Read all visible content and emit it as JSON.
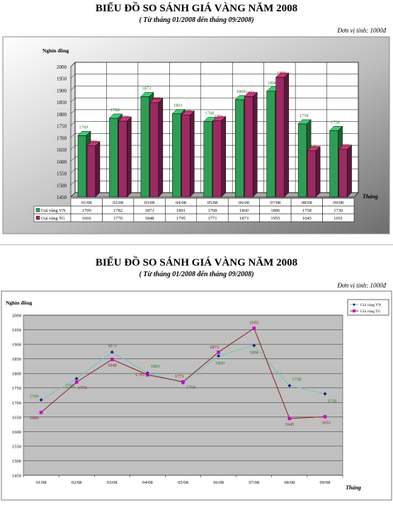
{
  "chart_data": [
    {
      "type": "bar",
      "title": "BIỂU ĐỒ SO SÁNH GIÁ VÀNG NĂM 2008",
      "subtitle": "( Từ tháng 01/2008 đến tháng 09/2008)",
      "unit": "Đơn vị tính: 1000đ",
      "ylabel": "Nghìn đồng",
      "xlabel": "Tháng",
      "ylim": [
        1450,
        2000
      ],
      "yticks": [
        1450,
        1500,
        1550,
        1600,
        1650,
        1700,
        1750,
        1800,
        1850,
        1900,
        1950,
        2000
      ],
      "categories": [
        "01/08",
        "02/08",
        "03/08",
        "04/08",
        "05/08",
        "06/08",
        "07/08",
        "08/08",
        "09/08"
      ],
      "series": [
        {
          "name": "Giá vàng VN",
          "values": [
            1709,
            1782,
            1873,
            1801,
            1768,
            1860,
            1896,
            1758,
            1730
          ]
        },
        {
          "name": "Giá vàng TG",
          "values": [
            1666,
            1770,
            1848,
            1795,
            1771,
            1873,
            1955,
            1645,
            1651
          ]
        }
      ],
      "grid": true,
      "legend": "data-table"
    },
    {
      "type": "line",
      "title": "BIỂU ĐỒ SO SÁNH GIÁ VÀNG NĂM 2008",
      "subtitle": "( Từ tháng 01/2008 đến tháng 09/2008)",
      "unit": "Đơn vị tính: 1000đ",
      "ylabel": "Nghìn đồng",
      "xlabel": "Tháng",
      "ylim": [
        1450,
        2000
      ],
      "yticks": [
        1450,
        1500,
        1550,
        1600,
        1650,
        1700,
        1750,
        1800,
        1850,
        1900,
        1950,
        2000
      ],
      "categories": [
        "01/08",
        "02/08",
        "03/08",
        "04/08",
        "05/08",
        "06/08",
        "07/08",
        "08/08",
        "09/08"
      ],
      "series": [
        {
          "name": "Giá vàng VN",
          "values": [
            1709,
            1782,
            1873,
            1801,
            1768,
            1860,
            1896,
            1758,
            1730
          ]
        },
        {
          "name": "Giá vàng TG",
          "values": [
            1666,
            1770,
            1848,
            1795,
            1771,
            1873,
            1955,
            1645,
            1651
          ]
        }
      ],
      "grid": true,
      "legend": "top-right"
    }
  ],
  "colors": {
    "vn": "#2e9e55",
    "tg": "#9c2a63",
    "vn_line": "#1c1c8c",
    "vn_line_stroke": "#6fc7b8",
    "tg_line": "#cc00cc",
    "tg_line_stroke": "#8b1a1a",
    "vn_label": "#1e7a1e",
    "tg_label": "#8b1a1a",
    "plot_bg": "#c0c0c0"
  }
}
